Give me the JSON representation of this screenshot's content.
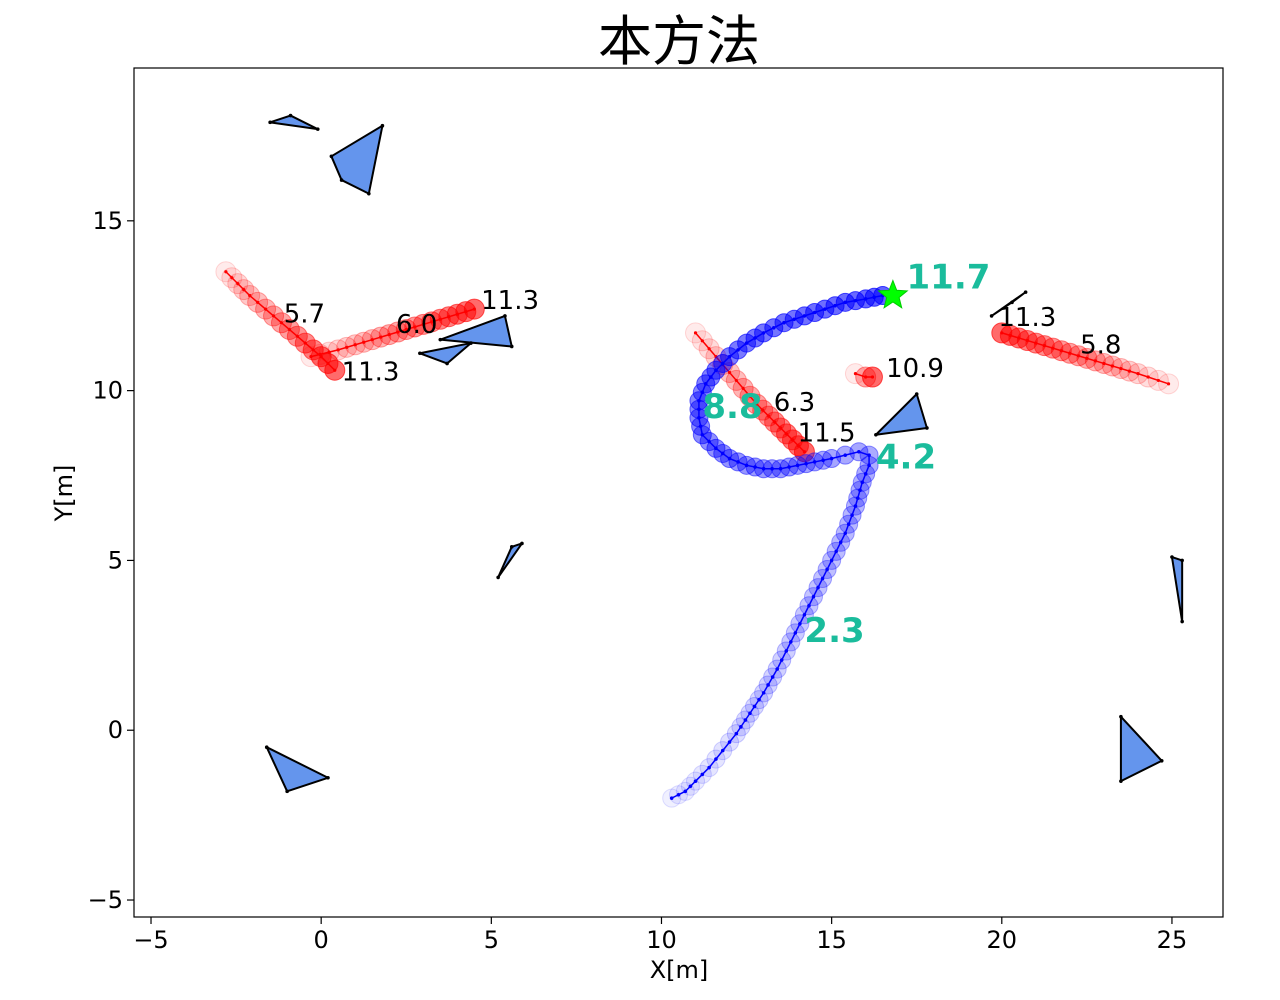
{
  "chart_data": {
    "type": "scatter",
    "title": "本方法",
    "xlabel": "X[m]",
    "ylabel": "Y[m]",
    "xlim": [
      -5.5,
      26.5
    ],
    "ylim": [
      -5.5,
      19.5
    ],
    "xticks": [
      -5,
      0,
      5,
      10,
      15,
      20,
      25
    ],
    "yticks": [
      -5,
      0,
      5,
      10,
      15
    ],
    "xtick_labels": [
      "−5",
      "0",
      "5",
      "10",
      "15",
      "20",
      "25"
    ],
    "ytick_labels": [
      "−5",
      "0",
      "5",
      "10",
      "15"
    ],
    "grid": false,
    "colors": {
      "robot": "#0000ff",
      "pedestrian": "#ff0000",
      "obstacle_fill": "#6495ed",
      "goal": "#00ff00",
      "teal_annotation": "#1abc9c"
    },
    "robot_trajectory": {
      "points": [
        [
          10.3,
          -2.0
        ],
        [
          10.7,
          -1.8
        ],
        [
          11.0,
          -1.5
        ],
        [
          11.4,
          -1.1
        ],
        [
          11.8,
          -0.6
        ],
        [
          12.2,
          -0.1
        ],
        [
          12.6,
          0.5
        ],
        [
          13.0,
          1.1
        ],
        [
          13.4,
          1.8
        ],
        [
          13.8,
          2.6
        ],
        [
          14.2,
          3.4
        ],
        [
          14.6,
          4.2
        ],
        [
          15.0,
          5.0
        ],
        [
          15.4,
          5.8
        ],
        [
          15.7,
          6.6
        ],
        [
          15.9,
          7.3
        ],
        [
          16.1,
          7.8
        ],
        [
          16.1,
          8.1
        ],
        [
          15.8,
          8.2
        ],
        [
          15.4,
          8.1
        ],
        [
          15.0,
          8.0
        ],
        [
          14.5,
          7.9
        ],
        [
          14.0,
          7.8
        ],
        [
          13.5,
          7.7
        ],
        [
          13.0,
          7.7
        ],
        [
          12.5,
          7.8
        ],
        [
          12.0,
          8.0
        ],
        [
          11.6,
          8.3
        ],
        [
          11.2,
          8.7
        ],
        [
          11.1,
          9.2
        ],
        [
          11.1,
          9.7
        ],
        [
          11.3,
          10.2
        ],
        [
          11.6,
          10.6
        ],
        [
          12.0,
          11.0
        ],
        [
          12.5,
          11.4
        ],
        [
          13.0,
          11.7
        ],
        [
          13.6,
          12.0
        ],
        [
          14.2,
          12.2
        ],
        [
          14.8,
          12.4
        ],
        [
          15.4,
          12.6
        ],
        [
          16.0,
          12.7
        ],
        [
          16.5,
          12.8
        ]
      ],
      "annotations": [
        {
          "text": "2.3",
          "x": 14.2,
          "y": 2.6
        },
        {
          "text": "4.2",
          "x": 16.3,
          "y": 7.7
        },
        {
          "text": "8.8",
          "x": 11.2,
          "y": 9.2
        },
        {
          "text": "11.7",
          "x": 17.2,
          "y": 13.0
        }
      ]
    },
    "goal": {
      "x": 16.8,
      "y": 12.8
    },
    "pedestrians": [
      {
        "path": [
          [
            -2.8,
            13.5
          ],
          [
            -2.1,
            12.8
          ],
          [
            -1.4,
            12.2
          ],
          [
            -0.7,
            11.6
          ],
          [
            0.0,
            11.0
          ],
          [
            0.4,
            10.6
          ]
        ],
        "end_label": "11.3",
        "label_x": 0.6,
        "label_y": 10.3,
        "mid_label": "5.7",
        "mid_x": -1.1,
        "mid_y": 12.0
      },
      {
        "path": [
          [
            -0.3,
            11.0
          ],
          [
            0.5,
            11.2
          ],
          [
            1.5,
            11.5
          ],
          [
            2.5,
            11.8
          ],
          [
            3.5,
            12.1
          ],
          [
            4.5,
            12.4
          ]
        ],
        "end_label": "11.3",
        "label_x": 4.7,
        "label_y": 12.4,
        "mid_label": "6.0",
        "mid_x": 2.2,
        "mid_y": 11.7
      },
      {
        "path": [
          [
            11.0,
            11.7
          ],
          [
            11.6,
            11.0
          ],
          [
            12.2,
            10.3
          ],
          [
            12.8,
            9.6
          ],
          [
            13.5,
            8.9
          ],
          [
            14.2,
            8.2
          ]
        ],
        "end_label": "11.5",
        "label_x": 14.0,
        "label_y": 8.5,
        "mid_label": "6.3",
        "mid_x": 13.3,
        "mid_y": 9.4
      },
      {
        "path": [
          [
            15.7,
            10.5
          ],
          [
            16.0,
            10.4
          ],
          [
            16.2,
            10.4
          ]
        ],
        "end_label": "10.9",
        "label_x": 16.6,
        "label_y": 10.4,
        "mid_label": "",
        "mid_x": 0,
        "mid_y": 0
      },
      {
        "path": [
          [
            24.9,
            10.2
          ],
          [
            24.0,
            10.5
          ],
          [
            23.0,
            10.8
          ],
          [
            22.0,
            11.1
          ],
          [
            21.0,
            11.4
          ],
          [
            20.0,
            11.7
          ]
        ],
        "end_label": "11.3",
        "label_x": 19.9,
        "label_y": 11.9,
        "mid_label": "5.8",
        "mid_x": 22.3,
        "mid_y": 11.1
      }
    ],
    "obstacles": [
      [
        [
          -1.5,
          17.9
        ],
        [
          -0.9,
          18.1
        ],
        [
          -0.1,
          17.7
        ]
      ],
      [
        [
          0.3,
          16.9
        ],
        [
          1.8,
          17.8
        ],
        [
          1.4,
          15.8
        ],
        [
          0.6,
          16.2
        ]
      ],
      [
        [
          3.5,
          11.5
        ],
        [
          5.4,
          12.2
        ],
        [
          5.6,
          11.3
        ]
      ],
      [
        [
          2.9,
          11.1
        ],
        [
          4.4,
          11.4
        ],
        [
          3.7,
          10.8
        ]
      ],
      [
        [
          5.2,
          4.5
        ],
        [
          5.6,
          5.4
        ],
        [
          5.9,
          5.5
        ]
      ],
      [
        [
          -1.6,
          -0.5
        ],
        [
          -1.0,
          -1.8
        ],
        [
          0.2,
          -1.4
        ]
      ],
      [
        [
          16.3,
          8.7
        ],
        [
          17.5,
          9.9
        ],
        [
          17.8,
          8.9
        ]
      ],
      [
        [
          19.7,
          12.2
        ],
        [
          20.3,
          12.6
        ],
        [
          20.7,
          12.9
        ]
      ],
      [
        [
          25.0,
          5.1
        ],
        [
          25.3,
          5.0
        ],
        [
          25.3,
          3.2
        ]
      ],
      [
        [
          23.5,
          0.4
        ],
        [
          24.7,
          -0.9
        ],
        [
          23.5,
          -1.5
        ]
      ]
    ]
  }
}
